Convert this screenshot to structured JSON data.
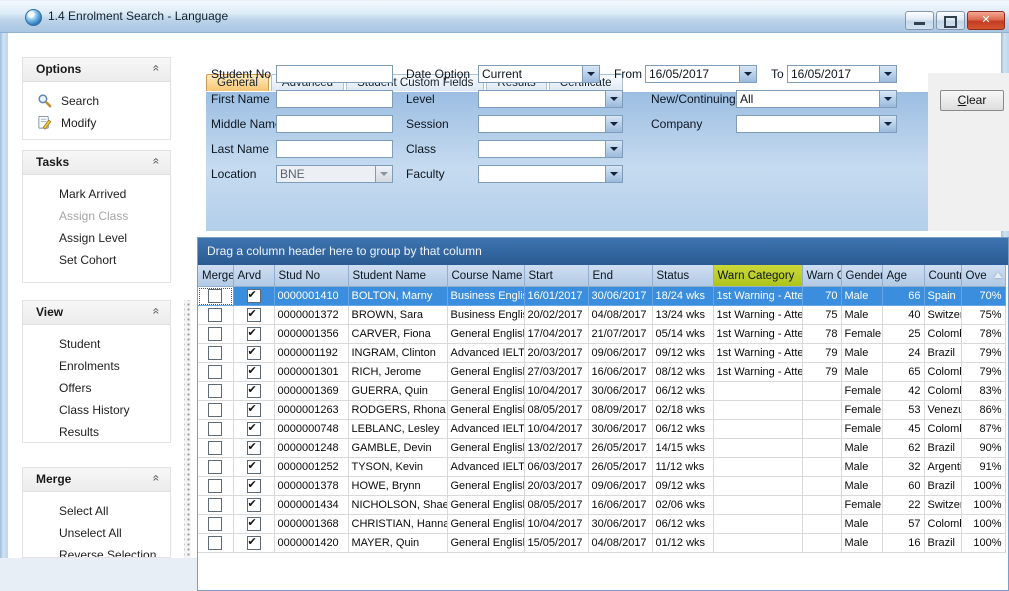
{
  "window": {
    "title": "1.4 Enrolment Search - Language",
    "controls": {
      "minimize": "minimize",
      "restore": "restore",
      "close": "close"
    }
  },
  "sidebar": {
    "sections": [
      {
        "title": "Options",
        "items": [
          {
            "label": "Search",
            "icon": "search"
          },
          {
            "label": "Modify",
            "icon": "modify"
          }
        ]
      },
      {
        "title": "Tasks",
        "items": [
          {
            "label": "Mark Arrived"
          },
          {
            "label": "Assign Class",
            "disabled": true
          },
          {
            "label": "Assign Level"
          },
          {
            "label": "Set Cohort"
          }
        ]
      },
      {
        "title": "View",
        "items": [
          {
            "label": "Student"
          },
          {
            "label": "Enrolments"
          },
          {
            "label": "Offers"
          },
          {
            "label": "Class History"
          },
          {
            "label": "Results"
          }
        ]
      },
      {
        "title": "Merge",
        "items": [
          {
            "label": "Select All"
          },
          {
            "label": "Unselect All"
          },
          {
            "label": "Reverse Selection"
          }
        ]
      }
    ]
  },
  "tabs": {
    "items": [
      "General",
      "Advanced",
      "Student Custom Fields",
      "Results",
      "Certificate"
    ],
    "active_index": 0
  },
  "form": {
    "col1": [
      {
        "label": "Student No",
        "value": "",
        "type": "text"
      },
      {
        "label": "First Name",
        "value": "",
        "type": "text"
      },
      {
        "label": "Middle Name",
        "value": "",
        "type": "text"
      },
      {
        "label": "Last Name",
        "value": "",
        "type": "text"
      },
      {
        "label": "Location",
        "value": "BNE",
        "type": "select",
        "disabled": true
      }
    ],
    "col2": [
      {
        "label": "Date Option",
        "value": "Current"
      },
      {
        "label": "Level",
        "value": ""
      },
      {
        "label": "Session",
        "value": ""
      },
      {
        "label": "Class",
        "value": ""
      },
      {
        "label": "Faculty",
        "value": ""
      }
    ],
    "col3": [
      {
        "label": "From",
        "value": "16/05/2017"
      },
      {
        "label": "To",
        "value": "16/05/2017"
      },
      {
        "label": "New/Continuing",
        "value": "All"
      },
      {
        "label": "Company",
        "value": ""
      }
    ]
  },
  "actions": {
    "clear_accel": "C",
    "clear_rest": "lear"
  },
  "grid": {
    "group_hint": "Drag a column header here to group by that column",
    "columns": [
      {
        "key": "merge",
        "label": "Merge"
      },
      {
        "key": "arvd",
        "label": "Arvd"
      },
      {
        "key": "stud_no",
        "label": "Stud No"
      },
      {
        "key": "student_name",
        "label": "Student Name"
      },
      {
        "key": "course_name",
        "label": "Course Name"
      },
      {
        "key": "start",
        "label": "Start"
      },
      {
        "key": "end",
        "label": "End"
      },
      {
        "key": "status",
        "label": "Status"
      },
      {
        "key": "warn_category",
        "label": "Warn Category",
        "highlighted": true
      },
      {
        "key": "warn_count",
        "label": "Warn C"
      },
      {
        "key": "gender",
        "label": "Gender"
      },
      {
        "key": "age",
        "label": "Age"
      },
      {
        "key": "country",
        "label": "Country"
      },
      {
        "key": "overall",
        "label": "Ove",
        "sort": "asc"
      }
    ],
    "rows": [
      {
        "merge": false,
        "arvd": true,
        "stud_no": "0000001410",
        "student_name": "BOLTON, Marny",
        "course_name": "Business English",
        "start": "16/01/2017",
        "end": "30/06/2017",
        "status": "18/24 wks",
        "warn_category": "1st Warning - Atte",
        "warn_count": "70",
        "gender": "Male",
        "age": "66",
        "country": "Spain",
        "overall": "70%",
        "selected": true
      },
      {
        "merge": false,
        "arvd": true,
        "stud_no": "0000001372",
        "student_name": "BROWN, Sara",
        "course_name": "Business English",
        "start": "20/02/2017",
        "end": "04/08/2017",
        "status": "13/24 wks",
        "warn_category": "1st Warning - Atte",
        "warn_count": "75",
        "gender": "Male",
        "age": "40",
        "country": "Switzerl",
        "overall": "75%"
      },
      {
        "merge": false,
        "arvd": true,
        "stud_no": "0000001356",
        "student_name": "CARVER, Fiona",
        "course_name": "General English",
        "start": "17/04/2017",
        "end": "21/07/2017",
        "status": "05/14 wks",
        "warn_category": "1st Warning - Atte",
        "warn_count": "78",
        "gender": "Female",
        "age": "25",
        "country": "Colombi",
        "overall": "78%"
      },
      {
        "merge": false,
        "arvd": true,
        "stud_no": "0000001192",
        "student_name": "INGRAM, Clinton",
        "course_name": "Advanced IELTS",
        "start": "20/03/2017",
        "end": "09/06/2017",
        "status": "09/12 wks",
        "warn_category": "1st Warning - Atte",
        "warn_count": "79",
        "gender": "Male",
        "age": "24",
        "country": "Brazil",
        "overall": "79%"
      },
      {
        "merge": false,
        "arvd": true,
        "stud_no": "0000001301",
        "student_name": "RICH, Jerome",
        "course_name": "General English",
        "start": "27/03/2017",
        "end": "16/06/2017",
        "status": "08/12 wks",
        "warn_category": "1st Warning - Atte",
        "warn_count": "79",
        "gender": "Male",
        "age": "65",
        "country": "Colombi",
        "overall": "79%"
      },
      {
        "merge": false,
        "arvd": true,
        "stud_no": "0000001369",
        "student_name": "GUERRA, Quin",
        "course_name": "General English",
        "start": "10/04/2017",
        "end": "30/06/2017",
        "status": "06/12 wks",
        "warn_category": "",
        "warn_count": "",
        "gender": "Female",
        "age": "42",
        "country": "Colombi",
        "overall": "83%"
      },
      {
        "merge": false,
        "arvd": true,
        "stud_no": "0000001263",
        "student_name": "RODGERS, Rhona",
        "course_name": "General English",
        "start": "08/05/2017",
        "end": "08/09/2017",
        "status": "02/18 wks",
        "warn_category": "",
        "warn_count": "",
        "gender": "Female",
        "age": "53",
        "country": "Venezu",
        "overall": "86%"
      },
      {
        "merge": false,
        "arvd": true,
        "stud_no": "0000000748",
        "student_name": "LEBLANC, Lesley",
        "course_name": "Advanced IELTS",
        "start": "10/04/2017",
        "end": "30/06/2017",
        "status": "06/12 wks",
        "warn_category": "",
        "warn_count": "",
        "gender": "Female",
        "age": "45",
        "country": "Colombi",
        "overall": "87%"
      },
      {
        "merge": false,
        "arvd": true,
        "stud_no": "0000001248",
        "student_name": "GAMBLE, Devin",
        "course_name": "General English",
        "start": "13/02/2017",
        "end": "26/05/2017",
        "status": "14/15 wks",
        "warn_category": "",
        "warn_count": "",
        "gender": "Male",
        "age": "62",
        "country": "Brazil",
        "overall": "90%"
      },
      {
        "merge": false,
        "arvd": true,
        "stud_no": "0000001252",
        "student_name": "TYSON, Kevin",
        "course_name": "Advanced IELTS",
        "start": "06/03/2017",
        "end": "26/05/2017",
        "status": "11/12 wks",
        "warn_category": "",
        "warn_count": "",
        "gender": "Male",
        "age": "32",
        "country": "Argenti",
        "overall": "91%"
      },
      {
        "merge": false,
        "arvd": true,
        "stud_no": "0000001378",
        "student_name": "HOWE, Brynn",
        "course_name": "General English",
        "start": "20/03/2017",
        "end": "09/06/2017",
        "status": "09/12 wks",
        "warn_category": "",
        "warn_count": "",
        "gender": "Male",
        "age": "60",
        "country": "Brazil",
        "overall": "100%"
      },
      {
        "merge": false,
        "arvd": true,
        "stud_no": "0000001434",
        "student_name": "NICHOLSON, Shaele",
        "course_name": "General English",
        "start": "08/05/2017",
        "end": "16/06/2017",
        "status": "02/06 wks",
        "warn_category": "",
        "warn_count": "",
        "gender": "Female",
        "age": "22",
        "country": "Switzerl",
        "overall": "100%"
      },
      {
        "merge": false,
        "arvd": true,
        "stud_no": "0000001368",
        "student_name": "CHRISTIAN, Hanna",
        "course_name": "General English",
        "start": "10/04/2017",
        "end": "30/06/2017",
        "status": "06/12 wks",
        "warn_category": "",
        "warn_count": "",
        "gender": "Male",
        "age": "57",
        "country": "Colombi",
        "overall": "100%"
      },
      {
        "merge": false,
        "arvd": true,
        "stud_no": "0000001420",
        "student_name": "MAYER, Quin",
        "course_name": "General English",
        "start": "15/05/2017",
        "end": "04/08/2017",
        "status": "01/12 wks",
        "warn_category": "",
        "warn_count": "",
        "gender": "Male",
        "age": "16",
        "country": "Brazil",
        "overall": "100%"
      }
    ]
  },
  "colors": {
    "selected_row": "#3b8edd",
    "warn_header_highlight": "#bcd12b",
    "group_bar": "#30639e",
    "active_tab": "#f8cd81"
  }
}
